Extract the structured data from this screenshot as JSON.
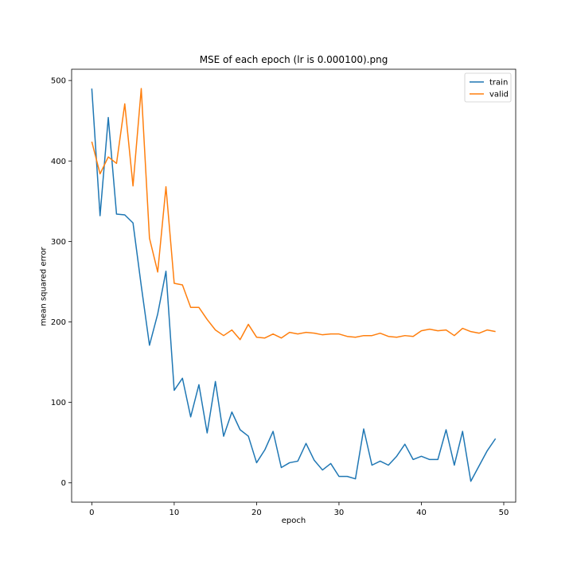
{
  "chart_data": {
    "type": "line",
    "title": "MSE of each epoch (lr is 0.000100).png",
    "xlabel": "epoch",
    "ylabel": "mean squared error",
    "xlim": [
      -2.45,
      51.45
    ],
    "ylim": [
      -24,
      514
    ],
    "xticks": [
      0,
      10,
      20,
      30,
      40,
      50
    ],
    "yticks": [
      0,
      100,
      200,
      300,
      400,
      500
    ],
    "grid": false,
    "legend_position": "top-right",
    "x": [
      0,
      1,
      2,
      3,
      4,
      5,
      6,
      7,
      8,
      9,
      10,
      11,
      12,
      13,
      14,
      15,
      16,
      17,
      18,
      19,
      20,
      21,
      22,
      23,
      24,
      25,
      26,
      27,
      28,
      29,
      30,
      31,
      32,
      33,
      34,
      35,
      36,
      37,
      38,
      39,
      40,
      41,
      42,
      43,
      44,
      45,
      46,
      47,
      48,
      49
    ],
    "series": [
      {
        "name": "train",
        "color": "#1f77b4",
        "values": [
          490,
          332,
          454,
          334,
          333,
          323,
          245,
          171,
          210,
          263,
          115,
          130,
          82,
          122,
          62,
          126,
          58,
          88,
          66,
          58,
          25,
          41,
          64,
          19,
          25,
          27,
          49,
          28,
          16,
          24,
          8,
          8,
          5,
          67,
          22,
          27,
          22,
          33,
          48,
          29,
          33,
          29,
          29,
          66,
          22,
          64,
          2,
          21,
          40,
          55
        ]
      },
      {
        "name": "valid",
        "color": "#ff7f0e",
        "values": [
          424,
          384,
          405,
          397,
          471,
          369,
          490,
          304,
          262,
          368,
          248,
          246,
          218,
          218,
          203,
          190,
          183,
          190,
          178,
          197,
          181,
          180,
          185,
          180,
          187,
          185,
          187,
          186,
          184,
          185,
          185,
          182,
          181,
          183,
          183,
          186,
          182,
          181,
          183,
          182,
          189,
          191,
          189,
          190,
          183,
          192,
          188,
          186,
          190,
          188
        ]
      }
    ]
  }
}
